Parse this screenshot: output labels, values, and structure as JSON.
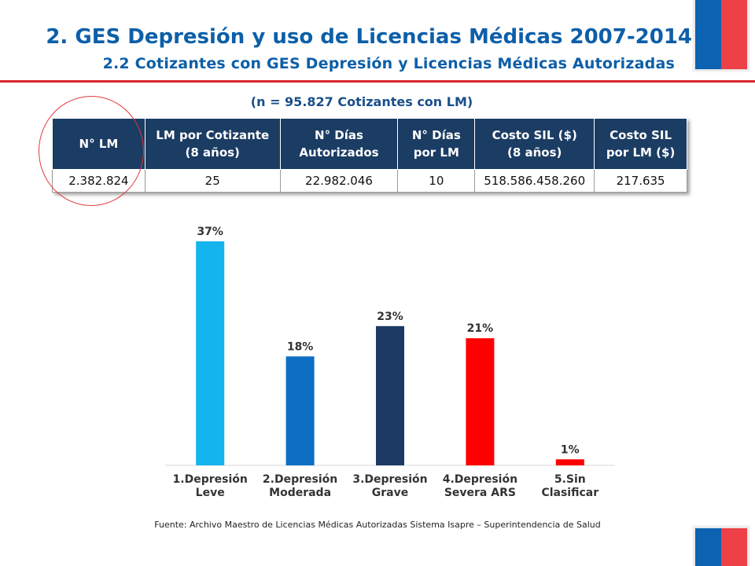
{
  "header": {
    "title": "2. GES Depresión y uso de Licencias Médicas 2007-2014",
    "subtitle": "2.2 Cotizantes con GES Depresión y Licencias Médicas Autorizadas"
  },
  "table_caption": "(n = 95.827 Cotizantes con LM)",
  "table": {
    "headers": [
      [
        "N° LM"
      ],
      [
        "LM por Cotizante",
        "(8 años)"
      ],
      [
        "N° Días",
        "Autorizados"
      ],
      [
        "N° Días",
        "por LM"
      ],
      [
        "Costo SIL ($)",
        "(8 años)"
      ],
      [
        "Costo SIL",
        "por LM ($)"
      ]
    ],
    "row": [
      "2.382.824",
      "25",
      "22.982.046",
      "10",
      "518.586.458.260",
      "217.635"
    ],
    "header_color": "#1b3c63"
  },
  "chart_data": {
    "type": "bar",
    "categories": [
      [
        "1.Depresión",
        "Leve"
      ],
      [
        "2.Depresión",
        "Moderada"
      ],
      [
        "3.Depresión",
        "Grave"
      ],
      [
        "4.Depresión",
        "Severa ARS"
      ],
      [
        "5.Sin",
        "Clasificar"
      ]
    ],
    "values": [
      37,
      18,
      23,
      21,
      1
    ],
    "labels": [
      "37%",
      "18%",
      "23%",
      "21%",
      "1%"
    ],
    "colors": [
      "#14b4ee",
      "#0c6fc4",
      "#1c3a63",
      "#ff0000",
      "#ff0000"
    ],
    "ylim": [
      0,
      37
    ],
    "grid": false,
    "legend": "none"
  },
  "footer": {
    "source": "Fuente: Archivo Maestro de Licencias Médicas Autorizadas Sistema Isapre – Superintendencia de Salud"
  },
  "brand_colors": {
    "blue": "#0d62b1",
    "red": "#ed4047",
    "title_blue": "#0d5fa8",
    "rule_red": "#d9262d"
  }
}
